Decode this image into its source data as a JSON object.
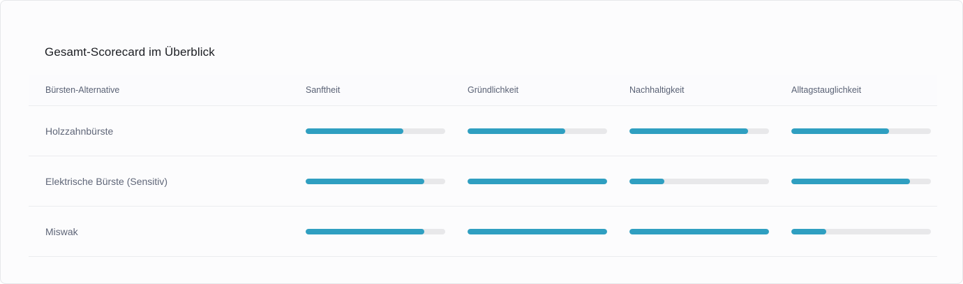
{
  "card": {
    "title": "Gesamt-Scorecard im Überblick"
  },
  "table": {
    "columns": [
      "Bürsten-Alternative",
      "Sanftheit",
      "Gründlichkeit",
      "Nachhaltigkeit",
      "Alltagstauglichkeit"
    ],
    "rows": [
      {
        "name": "Holzzahnbürste",
        "scores": [
          0.7,
          0.7,
          0.85,
          0.7
        ]
      },
      {
        "name": "Elektrische Bürste (Sensitiv)",
        "scores": [
          0.85,
          1.0,
          0.25,
          0.85
        ]
      },
      {
        "name": "Miswak",
        "scores": [
          0.85,
          1.0,
          1.0,
          0.25
        ]
      }
    ]
  },
  "colors": {
    "bar_fill": "#2f9fc1",
    "bar_track": "#e8e8ea"
  }
}
